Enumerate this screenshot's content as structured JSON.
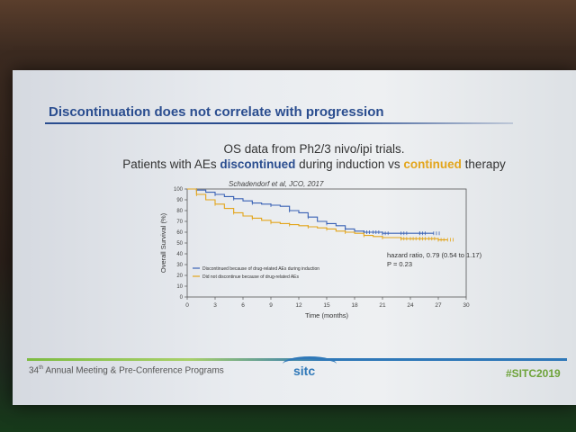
{
  "slide": {
    "title": "Discontinuation does not correlate with progression",
    "headline_line1": "OS data from Ph2/3 nivo/ipi trials.",
    "headline_prefix": "Patients with AEs ",
    "headline_blue": "discontinued",
    "headline_mid": " during induction vs ",
    "headline_gold": "continued",
    "headline_suffix": " therapy",
    "citation": "Schadendorf et al, JCO, 2017",
    "footer": "34",
    "footer_sup": "th",
    "footer_rest": " Annual Meeting & Pre-Conference Programs",
    "logo": "sitc",
    "hashtag": "#SITC2019",
    "colors": {
      "title_blue": "#2a4d8f",
      "gold": "#e3a51b",
      "green": "#6ea33a"
    }
  },
  "chart_data": {
    "type": "line",
    "xlabel": "Time (months)",
    "ylabel": "Overall Survival (%)",
    "xlim": [
      0,
      30
    ],
    "ylim": [
      0,
      100
    ],
    "x_ticks": [
      0,
      3,
      6,
      9,
      12,
      15,
      18,
      21,
      24,
      27,
      30
    ],
    "y_ticks": [
      0,
      10,
      20,
      30,
      40,
      50,
      60,
      70,
      80,
      90,
      100
    ],
    "series": [
      {
        "name": "Discontinued because of drug-related AEs during induction",
        "color": "#3a62b5",
        "points": [
          [
            0,
            100
          ],
          [
            1,
            99
          ],
          [
            2,
            97
          ],
          [
            3,
            95
          ],
          [
            4,
            93
          ],
          [
            5,
            91
          ],
          [
            6,
            89
          ],
          [
            7,
            87
          ],
          [
            8,
            86
          ],
          [
            9,
            85
          ],
          [
            10,
            84
          ],
          [
            11,
            80
          ],
          [
            12,
            78
          ],
          [
            13,
            74
          ],
          [
            14,
            70
          ],
          [
            15,
            68
          ],
          [
            16,
            66
          ],
          [
            17,
            63
          ],
          [
            18,
            61
          ],
          [
            19,
            60
          ],
          [
            20,
            60
          ],
          [
            21,
            59
          ],
          [
            23,
            59
          ],
          [
            25,
            59
          ],
          [
            26.5,
            59
          ]
        ]
      },
      {
        "name": "Did not discontinue because of drug-related AEs",
        "color": "#e3a51b",
        "points": [
          [
            0,
            100
          ],
          [
            1,
            95
          ],
          [
            2,
            90
          ],
          [
            3,
            86
          ],
          [
            4,
            82
          ],
          [
            5,
            78
          ],
          [
            6,
            75
          ],
          [
            7,
            73
          ],
          [
            8,
            71
          ],
          [
            9,
            69
          ],
          [
            10,
            68
          ],
          [
            11,
            67
          ],
          [
            12,
            66
          ],
          [
            13,
            65
          ],
          [
            14,
            64
          ],
          [
            15,
            63
          ],
          [
            16,
            61
          ],
          [
            17,
            60
          ],
          [
            18,
            59
          ],
          [
            19,
            57
          ],
          [
            20,
            56
          ],
          [
            21,
            55
          ],
          [
            22,
            55
          ],
          [
            23,
            54
          ],
          [
            24,
            54
          ],
          [
            25,
            54
          ],
          [
            26,
            54
          ],
          [
            27,
            53
          ],
          [
            28,
            53
          ]
        ]
      }
    ],
    "annotations": [
      "hazard ratio, 0.79  (0.54 to 1.17)",
      "P = 0.23"
    ]
  }
}
